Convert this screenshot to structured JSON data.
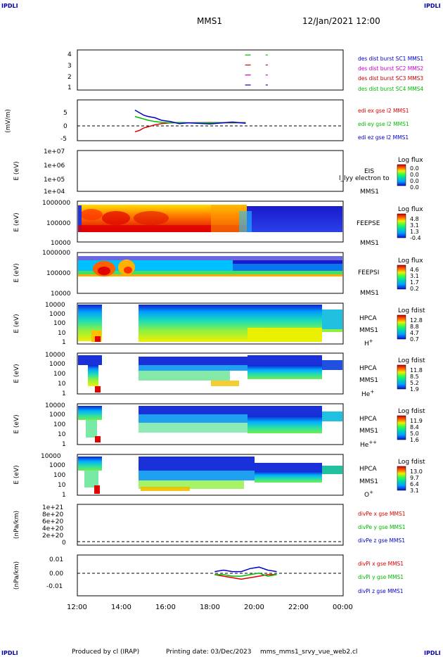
{
  "header": {
    "corner_tl": "IPDLI",
    "corner_tr": "IPDLI",
    "corner_bl": "IPDLI",
    "corner_br": "IPDLI",
    "title": "MMS1",
    "datetime": "12/Jan/2021 12:00"
  },
  "footer": {
    "produced_by": "Produced by cl (IRAP)",
    "printing_date": "Printing date: 03/Dec/2023",
    "script_name": "mms_mms1_srvy_vue_web2.cl"
  },
  "time_axis": {
    "ticks": [
      "12:00",
      "14:00",
      "16:00",
      "18:00",
      "20:00",
      "22:00",
      "00:00"
    ],
    "hours": [
      12,
      14,
      16,
      18,
      20,
      22,
      24
    ]
  },
  "panels": {
    "burst": {
      "yticks": [
        "4",
        "3",
        "2",
        "1"
      ],
      "legend": [
        {
          "text": "des dist burst SC1 MMS1",
          "color": "#0000cc"
        },
        {
          "text": "des dist burst SC2 MMS2",
          "color": "#cc00cc"
        },
        {
          "text": "des dist burst SC3 MMS3",
          "color": "#cc0000"
        },
        {
          "text": "des dist burst SC4 MMS4",
          "color": "#00bb00"
        }
      ]
    },
    "edi": {
      "ylabel": "(mV/m)",
      "yticks": [
        "5",
        "0",
        "-5"
      ],
      "legend": [
        {
          "text": "edi ex gse l2 MMS1",
          "color": "#dd0000"
        },
        {
          "text": "edi ey gse l2 MMS1",
          "color": "#00bb00"
        },
        {
          "text": "edi ez gse l2 MMS1",
          "color": "#0000cc"
        }
      ]
    },
    "eis": {
      "ylabel": "E (eV)",
      "yticks": [
        "1e+07",
        "1e+06",
        "1e+05",
        "1e+04"
      ],
      "label1": "EIS",
      "label2": "MMS1",
      "overlay": "l_lyy electron to",
      "cbar_title": "Log flux",
      "cbar_ticks": [
        "0.0",
        "0.0",
        "0.0",
        "0.0"
      ]
    },
    "feepse": {
      "ylabel": "E (eV)",
      "yticks": [
        "1000000",
        "100000",
        "10000"
      ],
      "label1": "FEEPSE",
      "label2": "MMS1",
      "cbar_title": "Log flux",
      "cbar_ticks": [
        "4.8",
        "3.1",
        "1.3",
        "-0.4"
      ]
    },
    "feepsi": {
      "ylabel": "E (eV)",
      "yticks": [
        "1000000",
        "100000",
        "10000"
      ],
      "label1": "FEEPSI",
      "label2": "MMS1",
      "cbar_title": "Log flux",
      "cbar_ticks": [
        "4.6",
        "3.1",
        "1.7",
        "0.2"
      ]
    },
    "hpca_h": {
      "ylabel": "E (eV)",
      "yticks": [
        "10000",
        "1000",
        "100",
        "10",
        "1"
      ],
      "label1": "HPCA",
      "label2": "MMS1",
      "species": "H",
      "species_sup": "+",
      "cbar_title": "Log fdist",
      "cbar_ticks": [
        "12.8",
        "8.8",
        "4.7",
        "0.7"
      ]
    },
    "hpca_he": {
      "ylabel": "E (eV)",
      "yticks": [
        "10000",
        "1000",
        "100",
        "10",
        "1"
      ],
      "label1": "HPCA",
      "label2": "MMS1",
      "species": "He",
      "species_sup": "+",
      "cbar_title": "Log fdist",
      "cbar_ticks": [
        "11.8",
        "8.5",
        "5.2",
        "1.9"
      ]
    },
    "hpca_hepp": {
      "ylabel": "E (eV)",
      "yticks": [
        "10000",
        "1000",
        "100",
        "10",
        "1"
      ],
      "label1": "HPCA",
      "label2": "MMS1",
      "species": "He",
      "species_sup": "++",
      "cbar_title": "Log fdist",
      "cbar_ticks": [
        "11.9",
        "8.4",
        "5.0",
        "1.6"
      ]
    },
    "hpca_o": {
      "ylabel": "E (eV)",
      "yticks": [
        "10000",
        "1000",
        "100",
        "10",
        "1"
      ],
      "label1": "HPCA",
      "label2": "MMS1",
      "species": "O",
      "species_sup": "+",
      "cbar_title": "Log fdist",
      "cbar_ticks": [
        "13.0",
        "9.7",
        "6.4",
        "3.1"
      ]
    },
    "divpe": {
      "ylabel": "(nPa/km)",
      "yticks": [
        "1e+21",
        "8e+20",
        "6e+20",
        "4e+20",
        "2e+20",
        "0"
      ],
      "legend": [
        {
          "text": "divPe x gse MMS1",
          "color": "#dd0000"
        },
        {
          "text": "divPe y gse MMS1",
          "color": "#00bb00"
        },
        {
          "text": "divPe z gse MMS1",
          "color": "#0000cc"
        }
      ]
    },
    "divpi": {
      "ylabel": "(nPa/km)",
      "yticks": [
        "0.01",
        "0.00",
        "-0.01"
      ],
      "legend": [
        {
          "text": "divPi x gse MMS1",
          "color": "#dd0000"
        },
        {
          "text": "divPi y gse MMS1",
          "color": "#00bb00"
        },
        {
          "text": "divPi z gse MMS1",
          "color": "#0000cc"
        }
      ]
    }
  },
  "chart_data": [
    {
      "type": "scatter",
      "title": "des dist burst",
      "x_unit": "hour",
      "series": [
        {
          "name": "des dist burst SC1 MMS1",
          "x": [
            19.7,
            20.55
          ],
          "y": [
            1,
            1
          ]
        },
        {
          "name": "des dist burst SC2 MMS2",
          "x": [
            19.7,
            20.55
          ],
          "y": [
            2,
            2
          ]
        },
        {
          "name": "des dist burst SC3 MMS3",
          "x": [
            19.7,
            20.55
          ],
          "y": [
            3,
            3
          ]
        },
        {
          "name": "des dist burst SC4 MMS4",
          "x": [
            19.7,
            20.55
          ],
          "y": [
            4,
            4
          ]
        }
      ],
      "xlim": [
        12,
        24
      ],
      "ylim": [
        0.5,
        4.5
      ]
    },
    {
      "type": "line",
      "ylabel": "(mV/m)",
      "x": [
        14.6,
        14.8,
        15.0,
        15.2,
        15.5,
        15.8,
        16.2,
        16.6,
        17.0,
        18.0,
        19.0,
        19.6
      ],
      "series": [
        {
          "name": "edi ex gse l2 MMS1",
          "values": [
            -3.5,
            -3.0,
            -2.0,
            -1.5,
            -0.8,
            -0.3,
            0,
            0.1,
            0,
            0.1,
            0,
            0.1
          ]
        },
        {
          "name": "edi ey gse l2 MMS1",
          "values": [
            2.5,
            2.0,
            1.5,
            1.0,
            0.5,
            0.2,
            0,
            0.1,
            0,
            0,
            0.1,
            0
          ]
        },
        {
          "name": "edi ez gse l2 MMS1",
          "values": [
            5.0,
            4.0,
            3.0,
            2.5,
            2.0,
            1.0,
            0.5,
            -0.3,
            0,
            -0.4,
            0.3,
            -0.2
          ]
        }
      ],
      "xlim": [
        12,
        24
      ],
      "ylim": [
        -7,
        9
      ],
      "grid": false
    },
    {
      "type": "heatmap",
      "ylabel": "E (eV)",
      "ylim": [
        10000,
        10000000
      ],
      "note": "no data"
    },
    {
      "type": "heatmap",
      "ylabel": "E (eV)",
      "ylim": [
        10000,
        1000000
      ],
      "colorbar": {
        "title": "Log flux",
        "range": [
          -0.4,
          4.8
        ]
      }
    },
    {
      "type": "heatmap",
      "ylabel": "E (eV)",
      "ylim": [
        10000,
        1000000
      ],
      "colorbar": {
        "title": "Log flux",
        "range": [
          0.2,
          4.6
        ]
      }
    },
    {
      "type": "heatmap",
      "ylabel": "E (eV)",
      "ylim": [
        1,
        10000
      ],
      "colorbar": {
        "title": "Log fdist",
        "range": [
          0.7,
          12.8
        ]
      }
    },
    {
      "type": "heatmap",
      "ylabel": "E (eV)",
      "ylim": [
        1,
        10000
      ],
      "colorbar": {
        "title": "Log fdist",
        "range": [
          1.9,
          11.8
        ]
      }
    },
    {
      "type": "heatmap",
      "ylabel": "E (eV)",
      "ylim": [
        1,
        10000
      ],
      "colorbar": {
        "title": "Log fdist",
        "range": [
          1.6,
          11.9
        ]
      }
    },
    {
      "type": "heatmap",
      "ylabel": "E (eV)",
      "ylim": [
        1,
        10000
      ],
      "colorbar": {
        "title": "Log fdist",
        "range": [
          3.1,
          13.0
        ]
      }
    },
    {
      "type": "line",
      "ylabel": "(nPa/km)",
      "series": [],
      "ylim": [
        0,
        1e+21
      ],
      "note": "no data"
    },
    {
      "type": "line",
      "ylabel": "(nPa/km)",
      "x": [
        18.2,
        18.6,
        19.0,
        19.4,
        19.8,
        20.2,
        20.6,
        21.0
      ],
      "series": [
        {
          "name": "divPi x gse MMS1",
          "values": [
            0.0,
            -0.001,
            -0.002,
            -0.003,
            -0.002,
            -0.001,
            0.0,
            0.0
          ]
        },
        {
          "name": "divPi y gse MMS1",
          "values": [
            0.0,
            0.0,
            -0.001,
            -0.001,
            0.0,
            0.001,
            -0.001,
            0.0
          ]
        },
        {
          "name": "divPi z gse MMS1",
          "values": [
            0.002,
            0.003,
            0.002,
            0.002,
            0.004,
            0.005,
            0.003,
            0.002
          ]
        }
      ],
      "xlim": [
        12,
        24
      ],
      "ylim": [
        -0.014,
        0.013
      ]
    }
  ]
}
